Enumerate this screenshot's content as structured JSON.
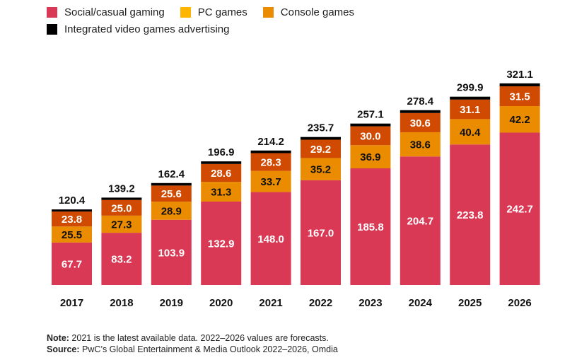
{
  "chart_data": {
    "type": "bar",
    "stacked": true,
    "categories": [
      "2017",
      "2018",
      "2019",
      "2020",
      "2021",
      "2022",
      "2023",
      "2024",
      "2025",
      "2026"
    ],
    "series": [
      {
        "name": "Social/casual gaming",
        "legend_color": "#d93954",
        "bar_color": "#d93954",
        "label_color": "#ffffff",
        "values": [
          67.7,
          83.2,
          103.9,
          132.9,
          148.0,
          167.0,
          185.8,
          204.7,
          223.8,
          242.7
        ]
      },
      {
        "name": "PC games",
        "legend_color": "#ffb600",
        "bar_color": "#eb8c00",
        "label_color": "#111111",
        "values": [
          25.5,
          27.3,
          28.9,
          31.3,
          33.7,
          35.2,
          36.9,
          38.6,
          40.4,
          42.2
        ]
      },
      {
        "name": "Console games",
        "legend_color": "#eb8c00",
        "bar_color": "#d04a02",
        "label_color": "#ffffff",
        "values": [
          23.8,
          25.0,
          25.6,
          28.6,
          28.3,
          29.2,
          30.0,
          30.6,
          31.1,
          31.5
        ]
      },
      {
        "name": "Integrated video games advertising",
        "legend_color": "#000000",
        "bar_color": "#000000",
        "values": [
          3.4,
          3.7,
          4.0,
          4.1,
          4.2,
          4.3,
          4.4,
          4.5,
          4.6,
          4.7
        ]
      }
    ],
    "totals": [
      "120.4",
      "139.2",
      "162.4",
      "196.9",
      "214.2",
      "235.7",
      "257.1",
      "278.4",
      "299.9",
      "321.1"
    ],
    "ylim": [
      0,
      330
    ],
    "grid": false,
    "legend_position": "top-left",
    "title": "",
    "xlabel": "",
    "ylabel": ""
  },
  "notes": {
    "note_label": "Note:",
    "note_text": " 2021 is the latest available data. 2022–2026 values are forecasts.",
    "source_label": "Source:",
    "source_text": " PwC’s Global Entertainment & Media Outlook 2022–2026, Omdia"
  }
}
